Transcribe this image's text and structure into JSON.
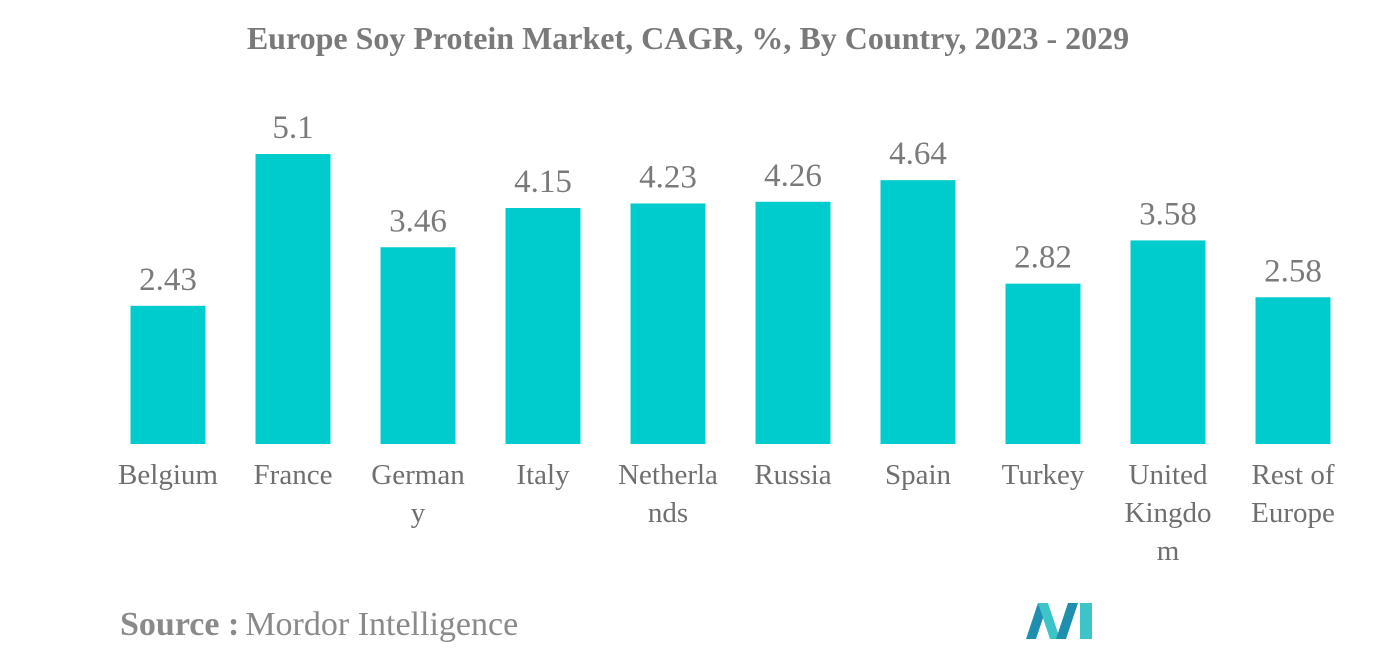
{
  "chart_data": {
    "type": "bar",
    "title": "Europe Soy Protein Market, CAGR, %, By Country, 2023 - 2029",
    "xlabel": "",
    "ylabel": "",
    "categories": [
      "Belgium",
      "France",
      "Germany",
      "Italy",
      "Netherlands",
      "Russia",
      "Spain",
      "Turkey",
      "United Kingdom",
      "Rest of Europe"
    ],
    "category_label_lines": [
      [
        "Belgium"
      ],
      [
        "France"
      ],
      [
        "German",
        "y"
      ],
      [
        "Italy"
      ],
      [
        "Netherla",
        "nds"
      ],
      [
        "Russia"
      ],
      [
        "Spain"
      ],
      [
        "Turkey"
      ],
      [
        "United",
        "Kingdo",
        "m"
      ],
      [
        "Rest of",
        "Europe"
      ]
    ],
    "values": [
      2.43,
      5.1,
      3.46,
      4.15,
      4.23,
      4.26,
      4.64,
      2.82,
      3.58,
      2.58
    ],
    "value_labels": [
      "2.43",
      "5.1",
      "3.46",
      "4.15",
      "4.23",
      "4.26",
      "4.64",
      "2.82",
      "3.58",
      "2.58"
    ],
    "ylim": [
      0,
      5.1
    ],
    "grid": false,
    "legend": "none",
    "bar_color": "#00ccce"
  },
  "source": {
    "label": "Source :",
    "text": "Mordor Intelligence"
  },
  "logo": {
    "icon": "mordor-intelligence-logo-icon",
    "colors": [
      "#1f8fb0",
      "#3cc4c9"
    ]
  }
}
